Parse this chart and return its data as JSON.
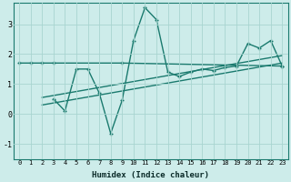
{
  "xlabel": "Humidex (Indice chaleur)",
  "background_color": "#cdecea",
  "grid_color": "#a8d5d0",
  "line_color": "#1a7a6e",
  "xlim": [
    -0.5,
    23.5
  ],
  "ylim": [
    -1.5,
    3.7
  ],
  "yticks": [
    -1,
    0,
    1,
    2,
    3
  ],
  "xticks": [
    0,
    1,
    2,
    3,
    4,
    5,
    6,
    7,
    8,
    9,
    10,
    11,
    12,
    13,
    14,
    15,
    16,
    17,
    18,
    19,
    20,
    21,
    22,
    23
  ],
  "line1_x": [
    0,
    1,
    2,
    3,
    9,
    23
  ],
  "line1_y": [
    1.7,
    1.7,
    1.7,
    1.7,
    1.7,
    1.6
  ],
  "line2_x": [
    3,
    4,
    5,
    6,
    7,
    8,
    9,
    10,
    11,
    12,
    13,
    14,
    15,
    16,
    17,
    18,
    19,
    20,
    21,
    22,
    23
  ],
  "line2_y": [
    0.5,
    0.1,
    1.5,
    1.5,
    0.7,
    -0.65,
    0.45,
    2.45,
    3.55,
    3.15,
    1.4,
    1.25,
    1.4,
    1.5,
    1.45,
    1.55,
    1.6,
    2.35,
    2.2,
    2.45,
    1.6
  ],
  "line3_x": [
    2,
    23
  ],
  "line3_y": [
    0.3,
    1.7
  ],
  "line4_x": [
    2,
    23
  ],
  "line4_y": [
    0.55,
    1.95
  ],
  "markersize": 2.5,
  "linewidth": 1.0
}
